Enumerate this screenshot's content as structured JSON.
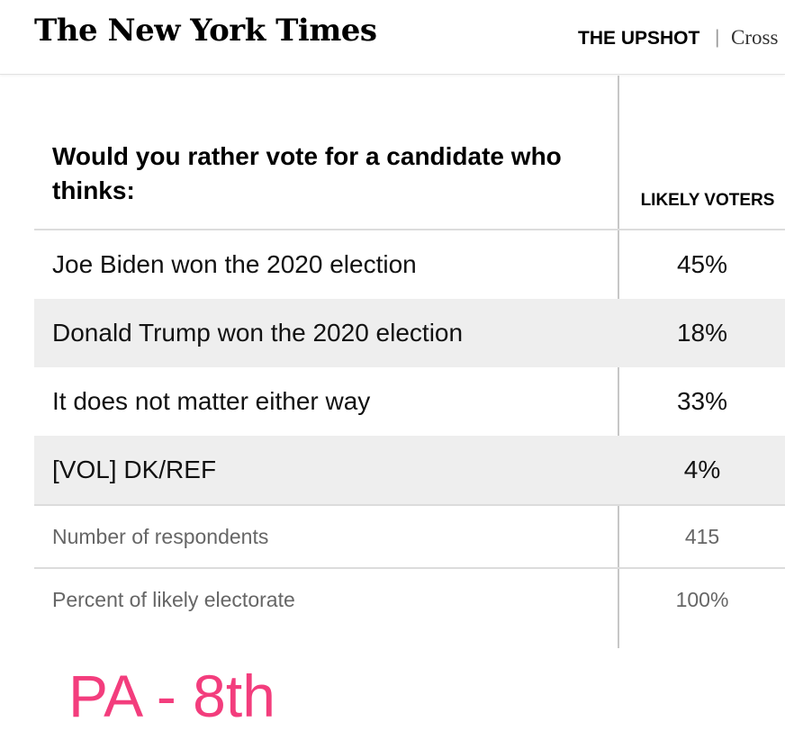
{
  "header": {
    "logo": "The New York Times",
    "section": "THE UPSHOT",
    "separator": "|",
    "subsection": "Cross"
  },
  "table": {
    "question": "Would you rather vote for a candidate who thinks:",
    "column_header": "LIKELY VOTERS",
    "rows": [
      {
        "label": "Joe Biden won the 2020 election",
        "value": "45%"
      },
      {
        "label": "Donald Trump won the 2020 election",
        "value": "18%"
      },
      {
        "label": "It does not matter either way",
        "value": "33%"
      },
      {
        "label": "[VOL] DK/REF",
        "value": "4%"
      }
    ],
    "meta": [
      {
        "label": "Number of respondents",
        "value": "415"
      },
      {
        "label": "Percent of likely electorate",
        "value": "100%"
      }
    ]
  },
  "annotation": {
    "text": "PA - 8th",
    "color": "#f33d7d"
  }
}
